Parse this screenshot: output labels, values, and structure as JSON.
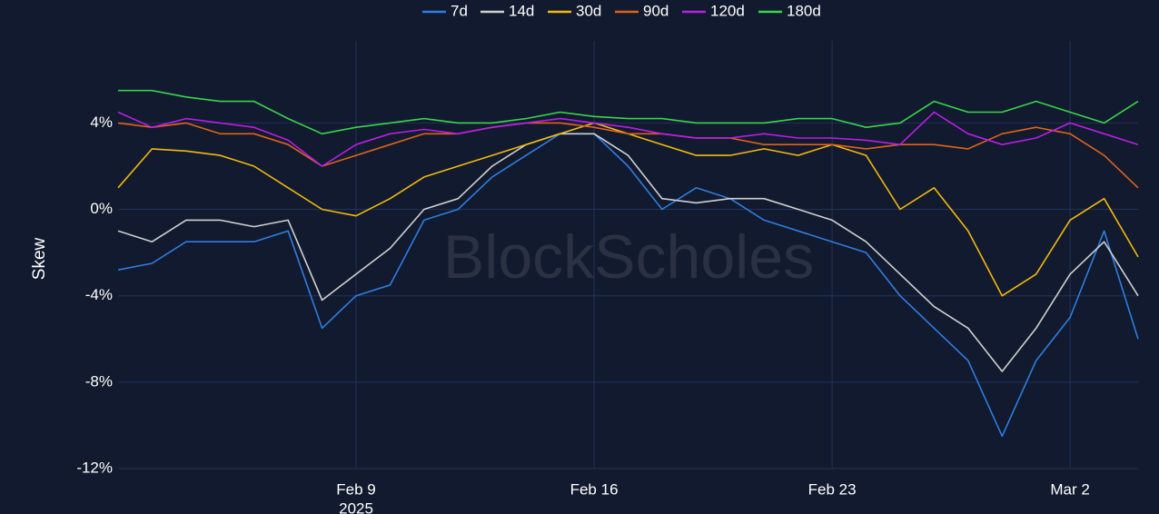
{
  "chart_data": {
    "type": "line",
    "y_label": "Skew",
    "watermark": "BlockScholes",
    "x": [
      "2025-02-02",
      "2025-02-03",
      "2025-02-04",
      "2025-02-05",
      "2025-02-06",
      "2025-02-07",
      "2025-02-08",
      "2025-02-09",
      "2025-02-10",
      "2025-02-11",
      "2025-02-12",
      "2025-02-13",
      "2025-02-14",
      "2025-02-15",
      "2025-02-16",
      "2025-02-17",
      "2025-02-18",
      "2025-02-19",
      "2025-02-20",
      "2025-02-21",
      "2025-02-22",
      "2025-02-23",
      "2025-02-24",
      "2025-02-25",
      "2025-02-26",
      "2025-02-27",
      "2025-02-28",
      "2025-03-01",
      "2025-03-02",
      "2025-03-03",
      "2025-03-04"
    ],
    "xlim": [
      "2025-02-02",
      "2025-03-04"
    ],
    "xticks": [
      {
        "value": "2025-02-09",
        "label": "Feb 9"
      },
      {
        "value": "2025-02-16",
        "label": "Feb 16"
      },
      {
        "value": "2025-02-23",
        "label": "Feb 23"
      },
      {
        "value": "2025-03-02",
        "label": "Mar 2"
      }
    ],
    "xtick_year": "2025",
    "ylim": [
      -12,
      7.8
    ],
    "yticks": [
      {
        "value": -12,
        "label": "-12%"
      },
      {
        "value": -8,
        "label": "-8%"
      },
      {
        "value": -4,
        "label": "-4%"
      },
      {
        "value": 0,
        "label": "0%"
      },
      {
        "value": 4,
        "label": "4%"
      }
    ],
    "grid": true,
    "legend": "top",
    "series": [
      {
        "name": "7d",
        "color": "#2f7de0",
        "values": [
          -2.8,
          -2.5,
          -1.5,
          -1.5,
          -1.5,
          -1.0,
          -5.5,
          -4,
          -3.5,
          -0.5,
          0,
          1.5,
          2.5,
          3.5,
          3.5,
          2,
          0,
          1,
          0.5,
          -0.5,
          -1,
          -1.5,
          -2,
          -4,
          -5.5,
          -7,
          -10.5,
          -7,
          -5,
          -1,
          -6
        ]
      },
      {
        "name": "14d",
        "color": "#d0d0d0",
        "values": [
          -1,
          -1.5,
          -0.5,
          -0.5,
          -0.8,
          -0.5,
          -4.2,
          -3,
          -1.8,
          0,
          0.5,
          2,
          3,
          3.5,
          3.5,
          2.5,
          0.5,
          0.3,
          0.5,
          0.5,
          0,
          -0.5,
          -1.5,
          -3,
          -4.5,
          -5.5,
          -7.5,
          -5.5,
          -3,
          -1.5,
          -4
        ]
      },
      {
        "name": "30d",
        "color": "#f2b90f",
        "values": [
          1,
          2.8,
          2.7,
          2.5,
          2,
          1,
          0,
          -0.3,
          0.5,
          1.5,
          2,
          2.5,
          3,
          3.5,
          4,
          3.5,
          3,
          2.5,
          2.5,
          2.8,
          2.5,
          3,
          2.5,
          0,
          1,
          -1,
          -4,
          -3,
          -0.5,
          0.5,
          -2.2
        ]
      },
      {
        "name": "90d",
        "color": "#e0621a",
        "values": [
          4,
          3.8,
          4,
          3.5,
          3.5,
          3,
          2,
          2.5,
          3,
          3.5,
          3.5,
          3.8,
          4,
          4,
          3.8,
          3.5,
          3.5,
          3.3,
          3.3,
          3,
          3,
          3,
          2.8,
          3,
          3,
          2.8,
          3.5,
          3.8,
          3.5,
          2.5,
          1
        ]
      },
      {
        "name": "120d",
        "color": "#b81ee6",
        "values": [
          4.5,
          3.8,
          4.2,
          4,
          3.8,
          3.2,
          2,
          3,
          3.5,
          3.7,
          3.5,
          3.8,
          4,
          4.2,
          4,
          3.8,
          3.5,
          3.3,
          3.3,
          3.5,
          3.3,
          3.3,
          3.2,
          3,
          4.5,
          3.5,
          3,
          3.3,
          4,
          3.5,
          3
        ]
      },
      {
        "name": "180d",
        "color": "#3ad44a",
        "values": [
          5.5,
          5.5,
          5.2,
          5,
          5,
          4.2,
          3.5,
          3.8,
          4,
          4.2,
          4,
          4,
          4.2,
          4.5,
          4.3,
          4.2,
          4.2,
          4,
          4,
          4,
          4.2,
          4.2,
          3.8,
          4,
          5,
          4.5,
          4.5,
          5,
          4.5,
          4,
          5
        ]
      }
    ]
  }
}
